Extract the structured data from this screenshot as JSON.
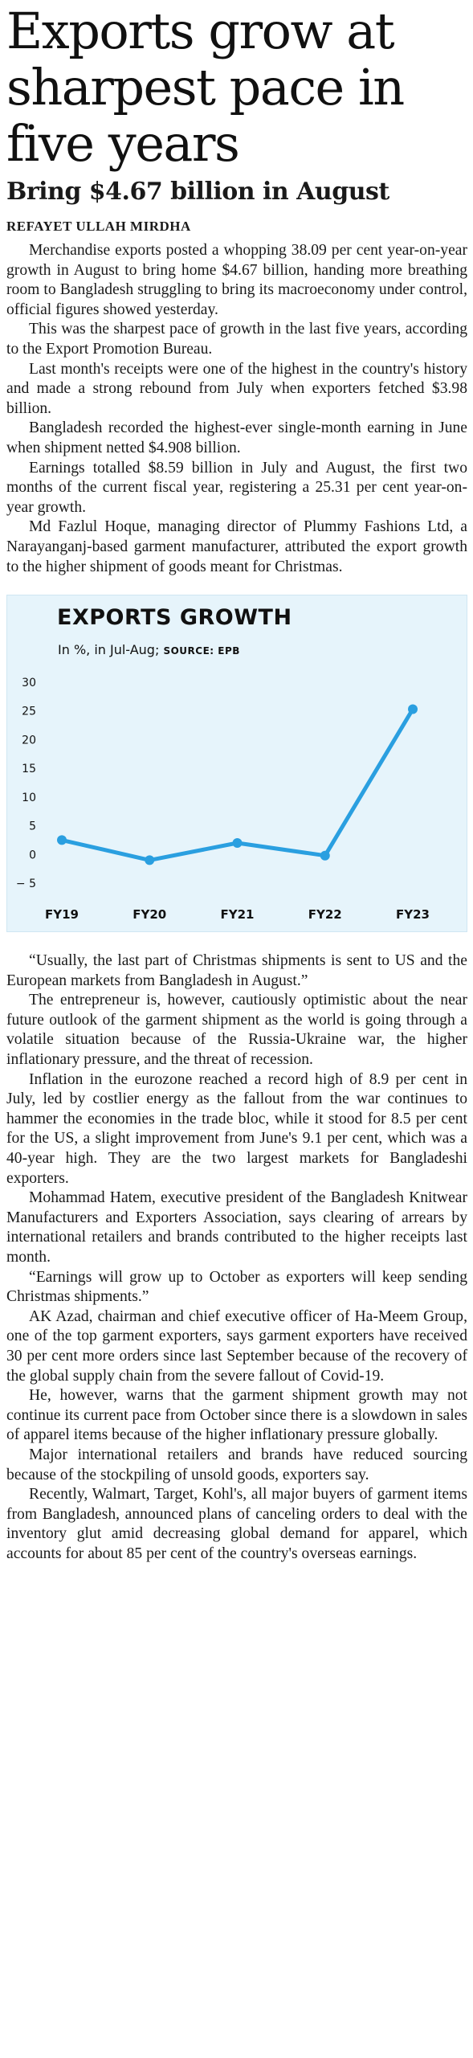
{
  "article": {
    "headline": "Exports grow at sharpest pace in five years",
    "subhead": "Bring $4.67 billion in August",
    "byline": "REFAYET ULLAH MIRDHA",
    "paragraphs_before_chart": [
      "Merchandise exports posted a whopping 38.09 per cent year-on-year growth in August to bring home $4.67 billion, handing more breathing room to Bangladesh struggling to bring its macroeconomy under control, official figures showed yesterday.",
      "This was the sharpest pace of growth in the last five years, according to the Export Promotion Bureau.",
      "Last month's receipts were one of the highest in the country's history and made a strong rebound from July when exporters fetched $3.98 billion.",
      "Bangladesh recorded the highest-ever single-month earning in June when shipment netted $4.908 billion.",
      "Earnings totalled $8.59 billion in July and August, the first two months of the current fiscal year, registering a 25.31 per cent year-on-year growth.",
      "Md Fazlul Hoque, managing director of Plummy Fashions Ltd, a Narayanganj-based garment manufacturer, attributed the export growth to the higher shipment of goods meant for Christmas."
    ],
    "paragraphs_after_chart": [
      "“Usually, the last part of Christmas shipments is sent to US and the European markets from Bangladesh in August.”",
      "The entrepreneur is, however, cautiously optimistic about the near future outlook of the garment shipment as the world is going through a volatile situation because of the Russia-Ukraine war, the higher inflationary pressure, and the threat of recession.",
      "Inflation in the eurozone reached a record high of 8.9 per cent in July, led by costlier energy as the fallout from the war continues to hammer the economies in the trade bloc, while it stood for 8.5 per cent for the US, a slight improvement from June's 9.1 per cent, which was a 40-year high. They are the two largest markets for Bangladeshi exporters.",
      "Mohammad Hatem, executive president of the Bangladesh Knitwear Manufacturers and Exporters Association, says clearing of arrears by international retailers and brands contributed to the higher receipts last month.",
      "“Earnings will grow up to October as exporters will keep sending Christmas shipments.”",
      "AK Azad, chairman and chief executive officer of Ha-Meem Group, one of the top garment exporters, says garment exporters have received 30 per cent more orders since last September because of the recovery of the global supply chain from the severe fallout of Covid-19.",
      "He, however, warns that the garment shipment growth may not continue its current pace from October since there is a slowdown in sales of apparel items because of the higher inflationary pressure globally.",
      "Major international retailers and brands have reduced sourcing because of the stockpiling of unsold goods, exporters say.",
      "Recently, Walmart, Target, Kohl's, all major buyers of garment items from Bangladesh, announced plans of canceling orders to deal with the inventory glut amid decreasing global demand for apparel, which accounts for about 85 per cent of the country's overseas earnings."
    ]
  },
  "chart_data": {
    "type": "line",
    "title": "EXPORTS GROWTH",
    "subtitle": "In %, in Jul-Aug;",
    "source": "SOURCE: EPB",
    "categories": [
      "FY19",
      "FY20",
      "FY21",
      "FY22",
      "FY23"
    ],
    "values": [
      2.5,
      -1.0,
      2.0,
      -0.2,
      25.31
    ],
    "ylim": [
      -5,
      30
    ],
    "yticks": [
      30,
      25,
      20,
      15,
      10,
      5,
      0,
      -5
    ],
    "ytick_labels": [
      "30",
      "25",
      "20",
      "15",
      "10",
      "5",
      "0",
      "− 5"
    ],
    "line_color": "#2a9fe0",
    "background_color": "#e6f4fb",
    "grid": false
  }
}
